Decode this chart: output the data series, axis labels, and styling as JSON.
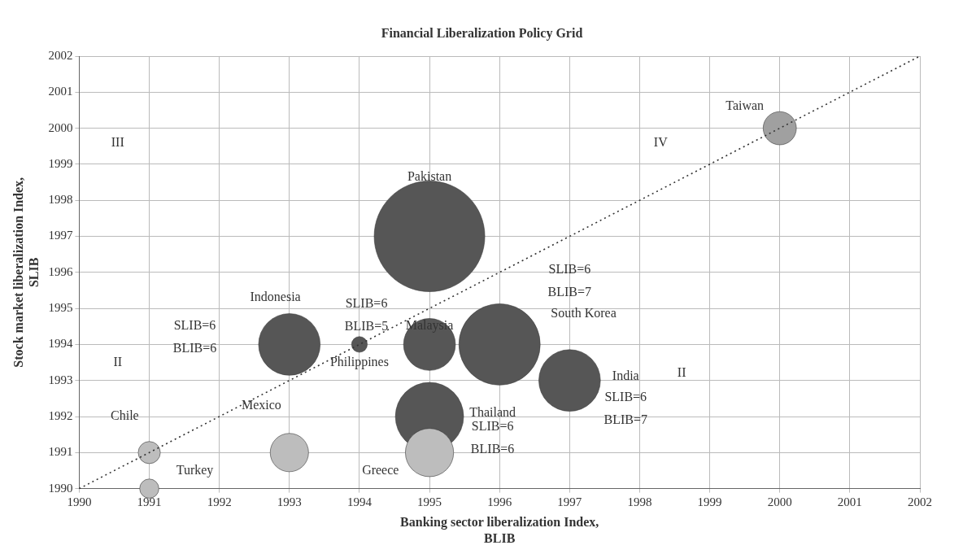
{
  "chart_data": {
    "type": "bubble",
    "title": "Financial Liberalization Policy Grid",
    "xlabel": "Banking sector liberalization Index,\nBLIB",
    "ylabel": "Stock market liberalization Index,\nSLIB",
    "xlim": [
      1990,
      2002
    ],
    "xticks": [
      1990,
      1991,
      1992,
      1993,
      1994,
      1995,
      1996,
      1997,
      1998,
      1999,
      2000,
      2001,
      2002
    ],
    "ylim": [
      1990,
      2002
    ],
    "yticks": [
      1990,
      1991,
      1992,
      1993,
      1994,
      1995,
      1996,
      1997,
      1998,
      1999,
      2000,
      2001,
      2002
    ],
    "grid": true,
    "legend": false,
    "series": [
      {
        "x": [
          2000,
          1995,
          1993,
          1994,
          1995,
          1996,
          1997,
          1995,
          1995,
          1993,
          1991,
          1991
        ],
        "values": [
          2000,
          1997,
          1994,
          1994,
          1994,
          1994,
          1993,
          1992,
          1991,
          1991,
          1991,
          1990
        ],
        "sizes": [
          0.09,
          1,
          0.31,
          0.02,
          0.22,
          0.54,
          0.31,
          0.38,
          0.19,
          0.12,
          0.04,
          0.03
        ],
        "colors": [
          "#a0a0a0",
          "#565656",
          "#565656",
          "#565656",
          "#565656",
          "#565656",
          "#565656",
          "#565656",
          "#bdbdbd",
          "#bdbdbd",
          "#bdbdbd",
          "#bdbdbd"
        ],
        "value_labels": [
          "Taiwan",
          "Pakistan",
          "Indonesia",
          "Philippines",
          "Malaysia",
          "South Korea",
          "India",
          "Thailand",
          "Greece",
          "Mexico",
          "Chile",
          "Turkey"
        ]
      },
      {
        "type": "line",
        "x": [
          1990,
          2002
        ],
        "values": [
          1990,
          2002
        ],
        "color": "#333333",
        "line_style": "dotted",
        "marker": "none"
      }
    ],
    "annotations": [
      "III",
      "IV",
      "II",
      "II",
      "SLIB=6\nBLIB=6",
      "SLIB=6\nBLIB=5",
      "SLIB=6\nBLIB=7",
      "SLIB=6\nBLIB=7",
      "SLIB=6\nBLIB=6"
    ]
  }
}
